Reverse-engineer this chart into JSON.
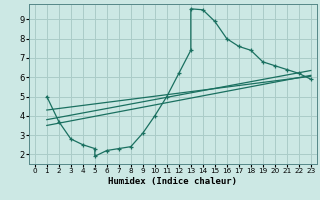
{
  "title": "",
  "xlabel": "Humidex (Indice chaleur)",
  "ylabel": "",
  "bg_color": "#cce8e4",
  "grid_color": "#aaccc8",
  "line_color": "#1a7060",
  "xlim": [
    -0.5,
    23.5
  ],
  "ylim": [
    1.5,
    9.8
  ],
  "xticks": [
    0,
    1,
    2,
    3,
    4,
    5,
    6,
    7,
    8,
    9,
    10,
    11,
    12,
    13,
    14,
    15,
    16,
    17,
    18,
    19,
    20,
    21,
    22,
    23
  ],
  "yticks": [
    2,
    3,
    4,
    5,
    6,
    7,
    8,
    9
  ],
  "series1_x": [
    1,
    2,
    3,
    4,
    5,
    5,
    6,
    7,
    8,
    9,
    10,
    11,
    12,
    13,
    13,
    14,
    15,
    16,
    17,
    18,
    19,
    20,
    21,
    22,
    23
  ],
  "series1_y": [
    5.0,
    3.7,
    2.8,
    2.5,
    2.3,
    1.9,
    2.2,
    2.3,
    2.4,
    3.1,
    4.0,
    5.0,
    6.2,
    7.4,
    9.55,
    9.5,
    8.9,
    8.0,
    7.6,
    7.4,
    6.8,
    6.6,
    6.4,
    6.2,
    5.9
  ],
  "series2_x": [
    1,
    23
  ],
  "series2_y": [
    3.5,
    6.1
  ],
  "series3_x": [
    1,
    23
  ],
  "series3_y": [
    3.8,
    6.35
  ],
  "series4_x": [
    1,
    23
  ],
  "series4_y": [
    4.3,
    6.05
  ]
}
